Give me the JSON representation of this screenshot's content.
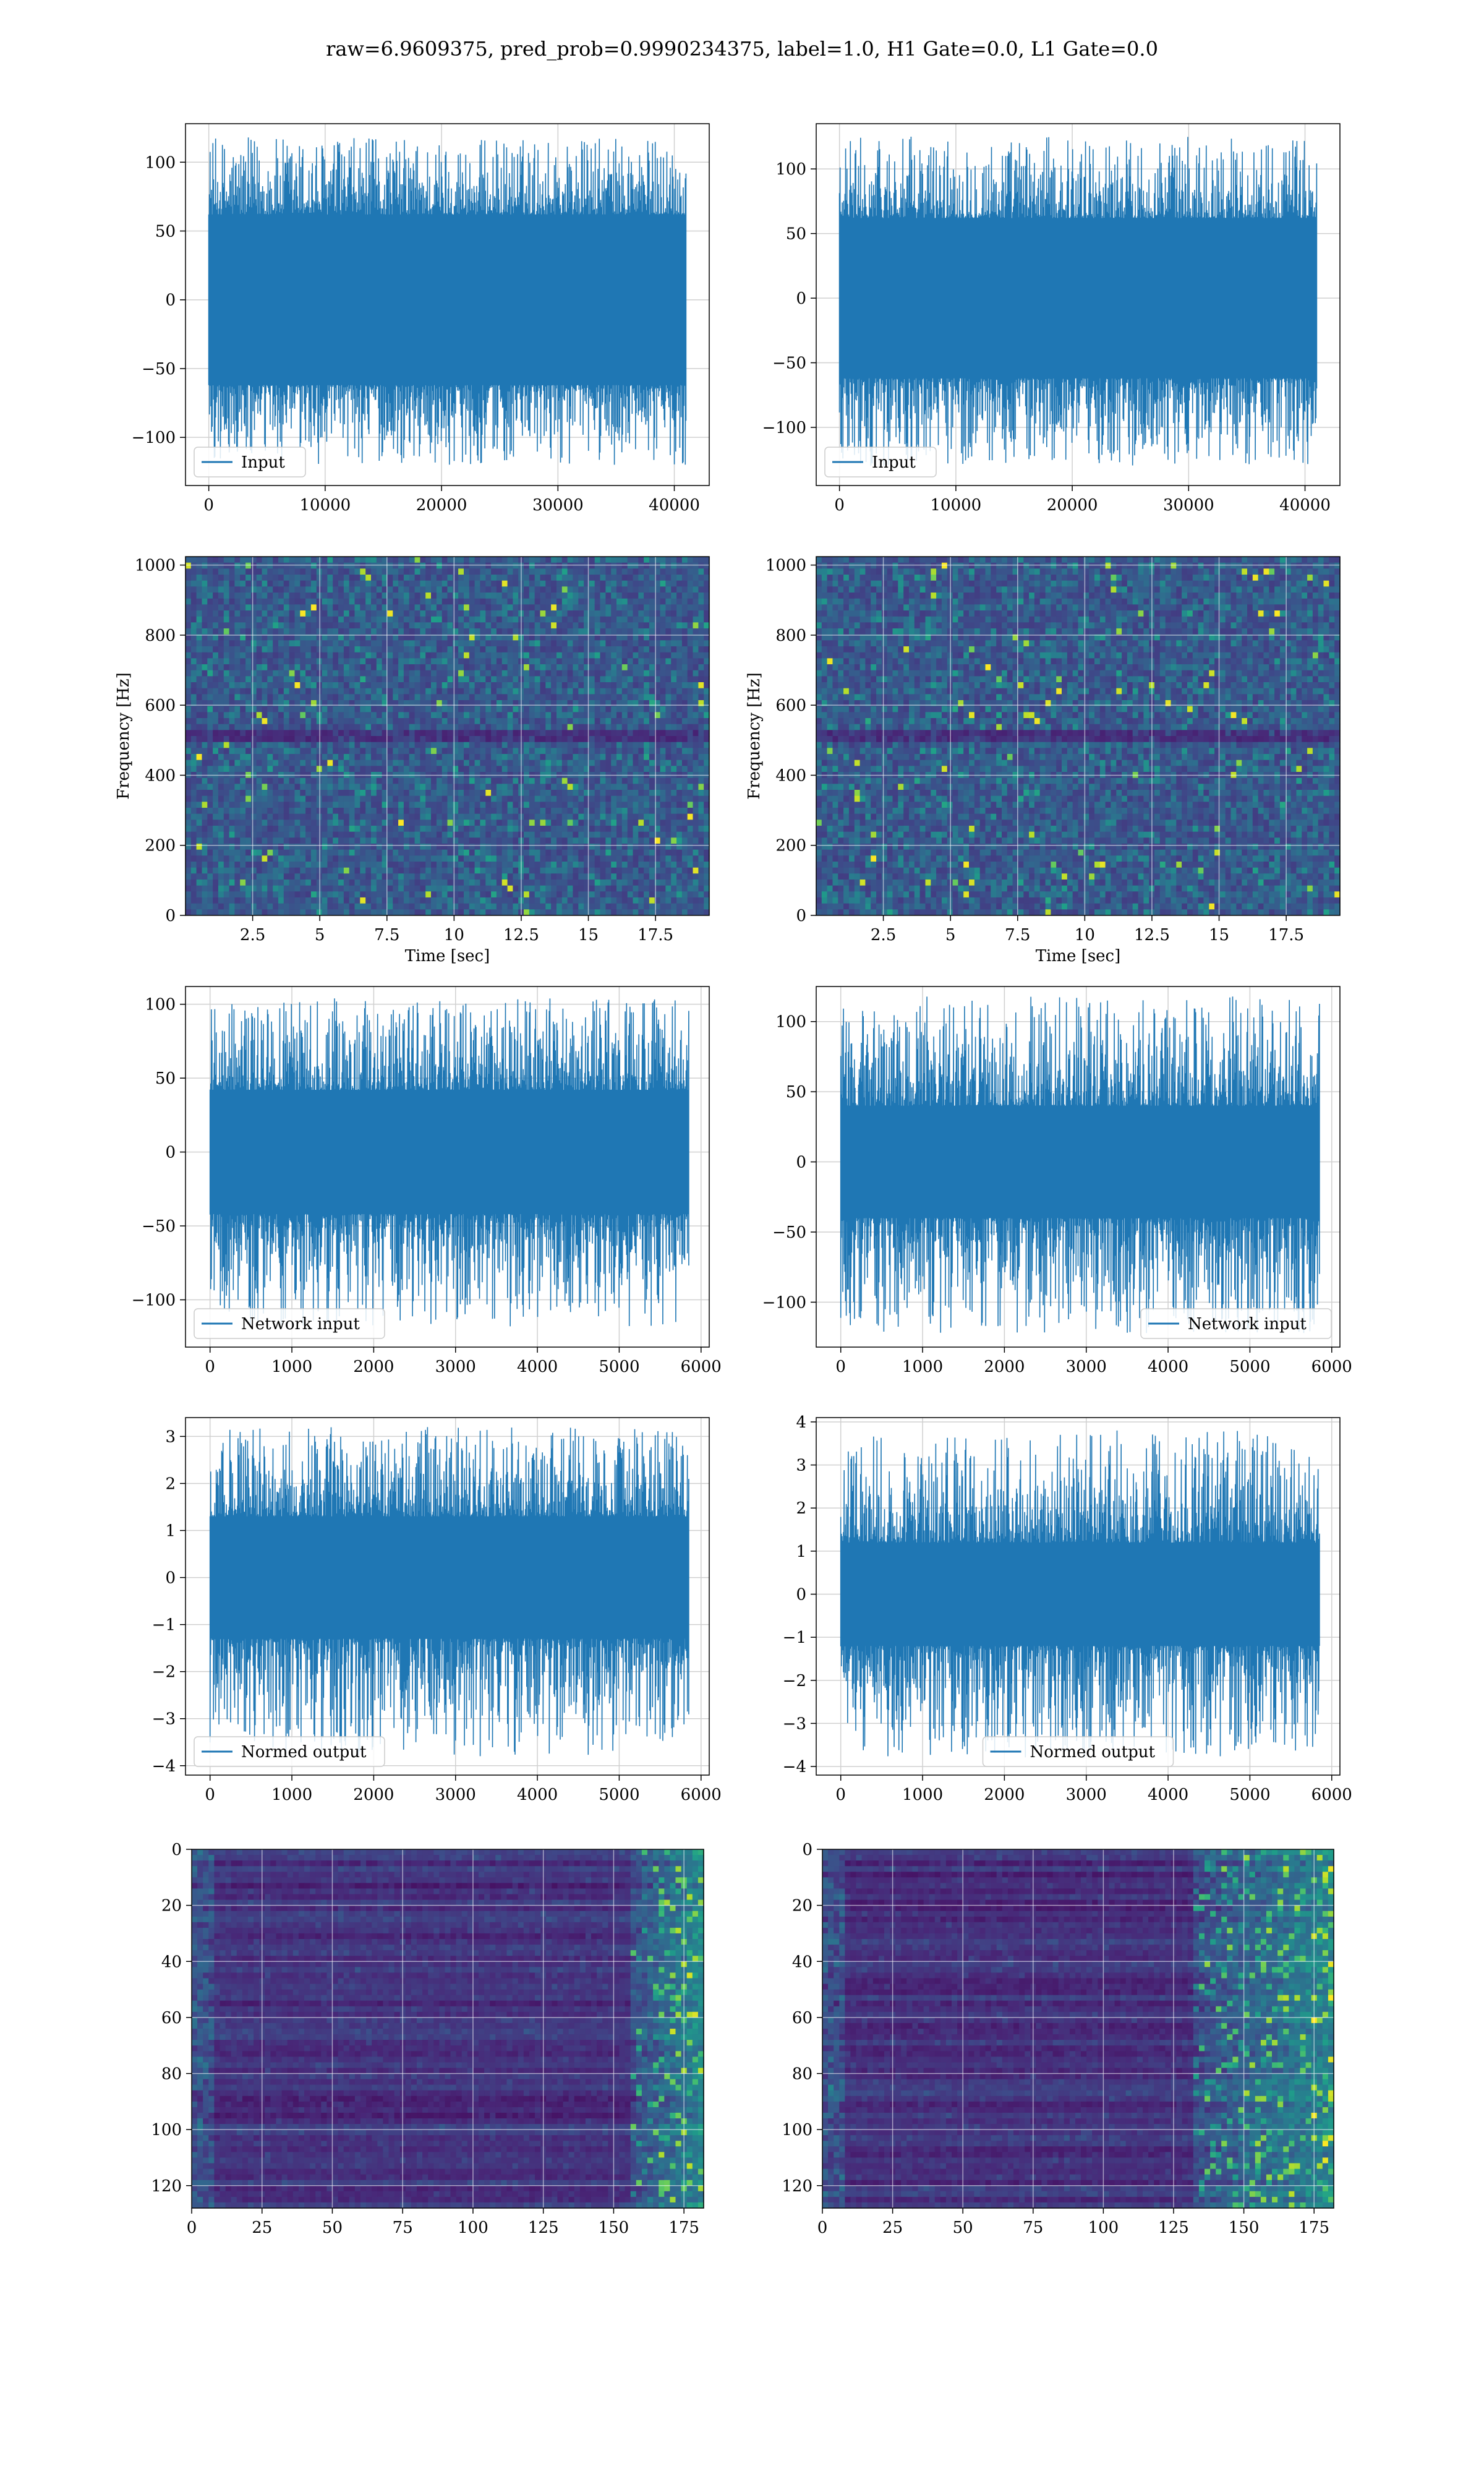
{
  "suptitle": "raw=6.9609375, pred_prob=0.9990234375, label=1.0, H1 Gate=0.0, L1 Gate=0.0",
  "colors": {
    "line": "#1f77b4",
    "grid": "#d0d0d0",
    "viridis_dark": "#440154"
  },
  "chart_data": [
    {
      "id": "input-h1",
      "type": "line",
      "legend": "Input",
      "legend_location": "lower-left",
      "xlim": [
        -2000,
        43000
      ],
      "ylim": [
        -135,
        128
      ],
      "xticks": [
        0,
        10000,
        20000,
        30000,
        40000
      ],
      "yticks": [
        -100,
        -50,
        0,
        50,
        100
      ],
      "x_range": [
        0,
        41000
      ],
      "envelope": {
        "core": [
          -62,
          62
        ],
        "peaks": [
          -120,
          118
        ]
      },
      "grid": true
    },
    {
      "id": "input-l1",
      "type": "line",
      "legend": "Input",
      "legend_location": "lower-left",
      "xlim": [
        -2000,
        43000
      ],
      "ylim": [
        -145,
        135
      ],
      "xticks": [
        0,
        10000,
        20000,
        30000,
        40000
      ],
      "yticks": [
        -100,
        -50,
        0,
        50,
        100
      ],
      "x_range": [
        0,
        41000
      ],
      "envelope": {
        "core": [
          -62,
          62
        ],
        "peaks": [
          -130,
          125
        ]
      },
      "grid": true
    },
    {
      "id": "spectrogram-h1",
      "type": "heatmap",
      "colormap": "viridis",
      "xlabel": "Time [sec]",
      "ylabel": "Frequency [Hz]",
      "xlim": [
        0,
        19.5
      ],
      "ylim": [
        0,
        1024
      ],
      "xticks": [
        2.5,
        5.0,
        7.5,
        10.0,
        12.5,
        15.0,
        17.5
      ],
      "yticks": [
        0,
        200,
        400,
        600,
        800,
        1000
      ],
      "grid": true
    },
    {
      "id": "spectrogram-l1",
      "type": "heatmap",
      "colormap": "viridis",
      "xlabel": "Time [sec]",
      "ylabel": "Frequency [Hz]",
      "xlim": [
        0,
        19.5
      ],
      "ylim": [
        0,
        1024
      ],
      "xticks": [
        2.5,
        5.0,
        7.5,
        10.0,
        12.5,
        15.0,
        17.5
      ],
      "yticks": [
        0,
        200,
        400,
        600,
        800,
        1000
      ],
      "grid": true
    },
    {
      "id": "network-input-h1",
      "type": "line",
      "legend": "Network input",
      "legend_location": "lower-left",
      "xlim": [
        -300,
        6100
      ],
      "ylim": [
        -132,
        112
      ],
      "xticks": [
        0,
        1000,
        2000,
        3000,
        4000,
        5000,
        6000
      ],
      "yticks": [
        -100,
        -50,
        0,
        50,
        100
      ],
      "x_range": [
        0,
        5850
      ],
      "envelope": {
        "core": [
          -42,
          42
        ],
        "peaks": [
          -118,
          104
        ]
      },
      "grid": true
    },
    {
      "id": "network-input-l1",
      "type": "line",
      "legend": "Network input",
      "legend_location": "lower-right",
      "xlim": [
        -300,
        6100
      ],
      "ylim": [
        -132,
        125
      ],
      "xticks": [
        0,
        1000,
        2000,
        3000,
        4000,
        5000,
        6000
      ],
      "yticks": [
        -100,
        -50,
        0,
        50,
        100
      ],
      "x_range": [
        0,
        5850
      ],
      "envelope": {
        "core": [
          -40,
          40
        ],
        "peaks": [
          -122,
          118
        ]
      },
      "grid": true
    },
    {
      "id": "normed-output-h1",
      "type": "line",
      "legend": "Normed output",
      "legend_location": "lower-left",
      "xlim": [
        -300,
        6100
      ],
      "ylim": [
        -4.2,
        3.4
      ],
      "xticks": [
        0,
        1000,
        2000,
        3000,
        4000,
        5000,
        6000
      ],
      "yticks": [
        -4,
        -3,
        -2,
        -1,
        0,
        1,
        2,
        3
      ],
      "x_range": [
        0,
        5850
      ],
      "envelope": {
        "core": [
          -1.3,
          1.3
        ],
        "peaks": [
          -3.8,
          3.2
        ]
      },
      "grid": true
    },
    {
      "id": "normed-output-l1",
      "type": "line",
      "legend": "Normed output",
      "legend_location": "lower-center",
      "xlim": [
        -300,
        6100
      ],
      "ylim": [
        -4.2,
        4.1
      ],
      "xticks": [
        0,
        1000,
        2000,
        3000,
        4000,
        5000,
        6000
      ],
      "yticks": [
        -4,
        -3,
        -2,
        -1,
        0,
        1,
        2,
        3,
        4
      ],
      "x_range": [
        0,
        5850
      ],
      "envelope": {
        "core": [
          -1.2,
          1.2
        ],
        "peaks": [
          -3.8,
          3.8
        ]
      },
      "grid": true
    },
    {
      "id": "feature-map-h1",
      "type": "heatmap",
      "colormap": "viridis",
      "xlim": [
        0,
        182
      ],
      "ylim": [
        128,
        0
      ],
      "xticks": [
        0,
        25,
        50,
        75,
        100,
        125,
        150,
        175
      ],
      "yticks": [
        0,
        20,
        40,
        60,
        80,
        100,
        120
      ],
      "hot_columns_from": 155,
      "grid": true
    },
    {
      "id": "feature-map-l1",
      "type": "heatmap",
      "colormap": "viridis",
      "xlim": [
        0,
        182
      ],
      "ylim": [
        128,
        0
      ],
      "xticks": [
        0,
        25,
        50,
        75,
        100,
        125,
        150,
        175
      ],
      "yticks": [
        0,
        20,
        40,
        60,
        80,
        100,
        120
      ],
      "hot_columns_from": 130,
      "grid": true
    }
  ]
}
